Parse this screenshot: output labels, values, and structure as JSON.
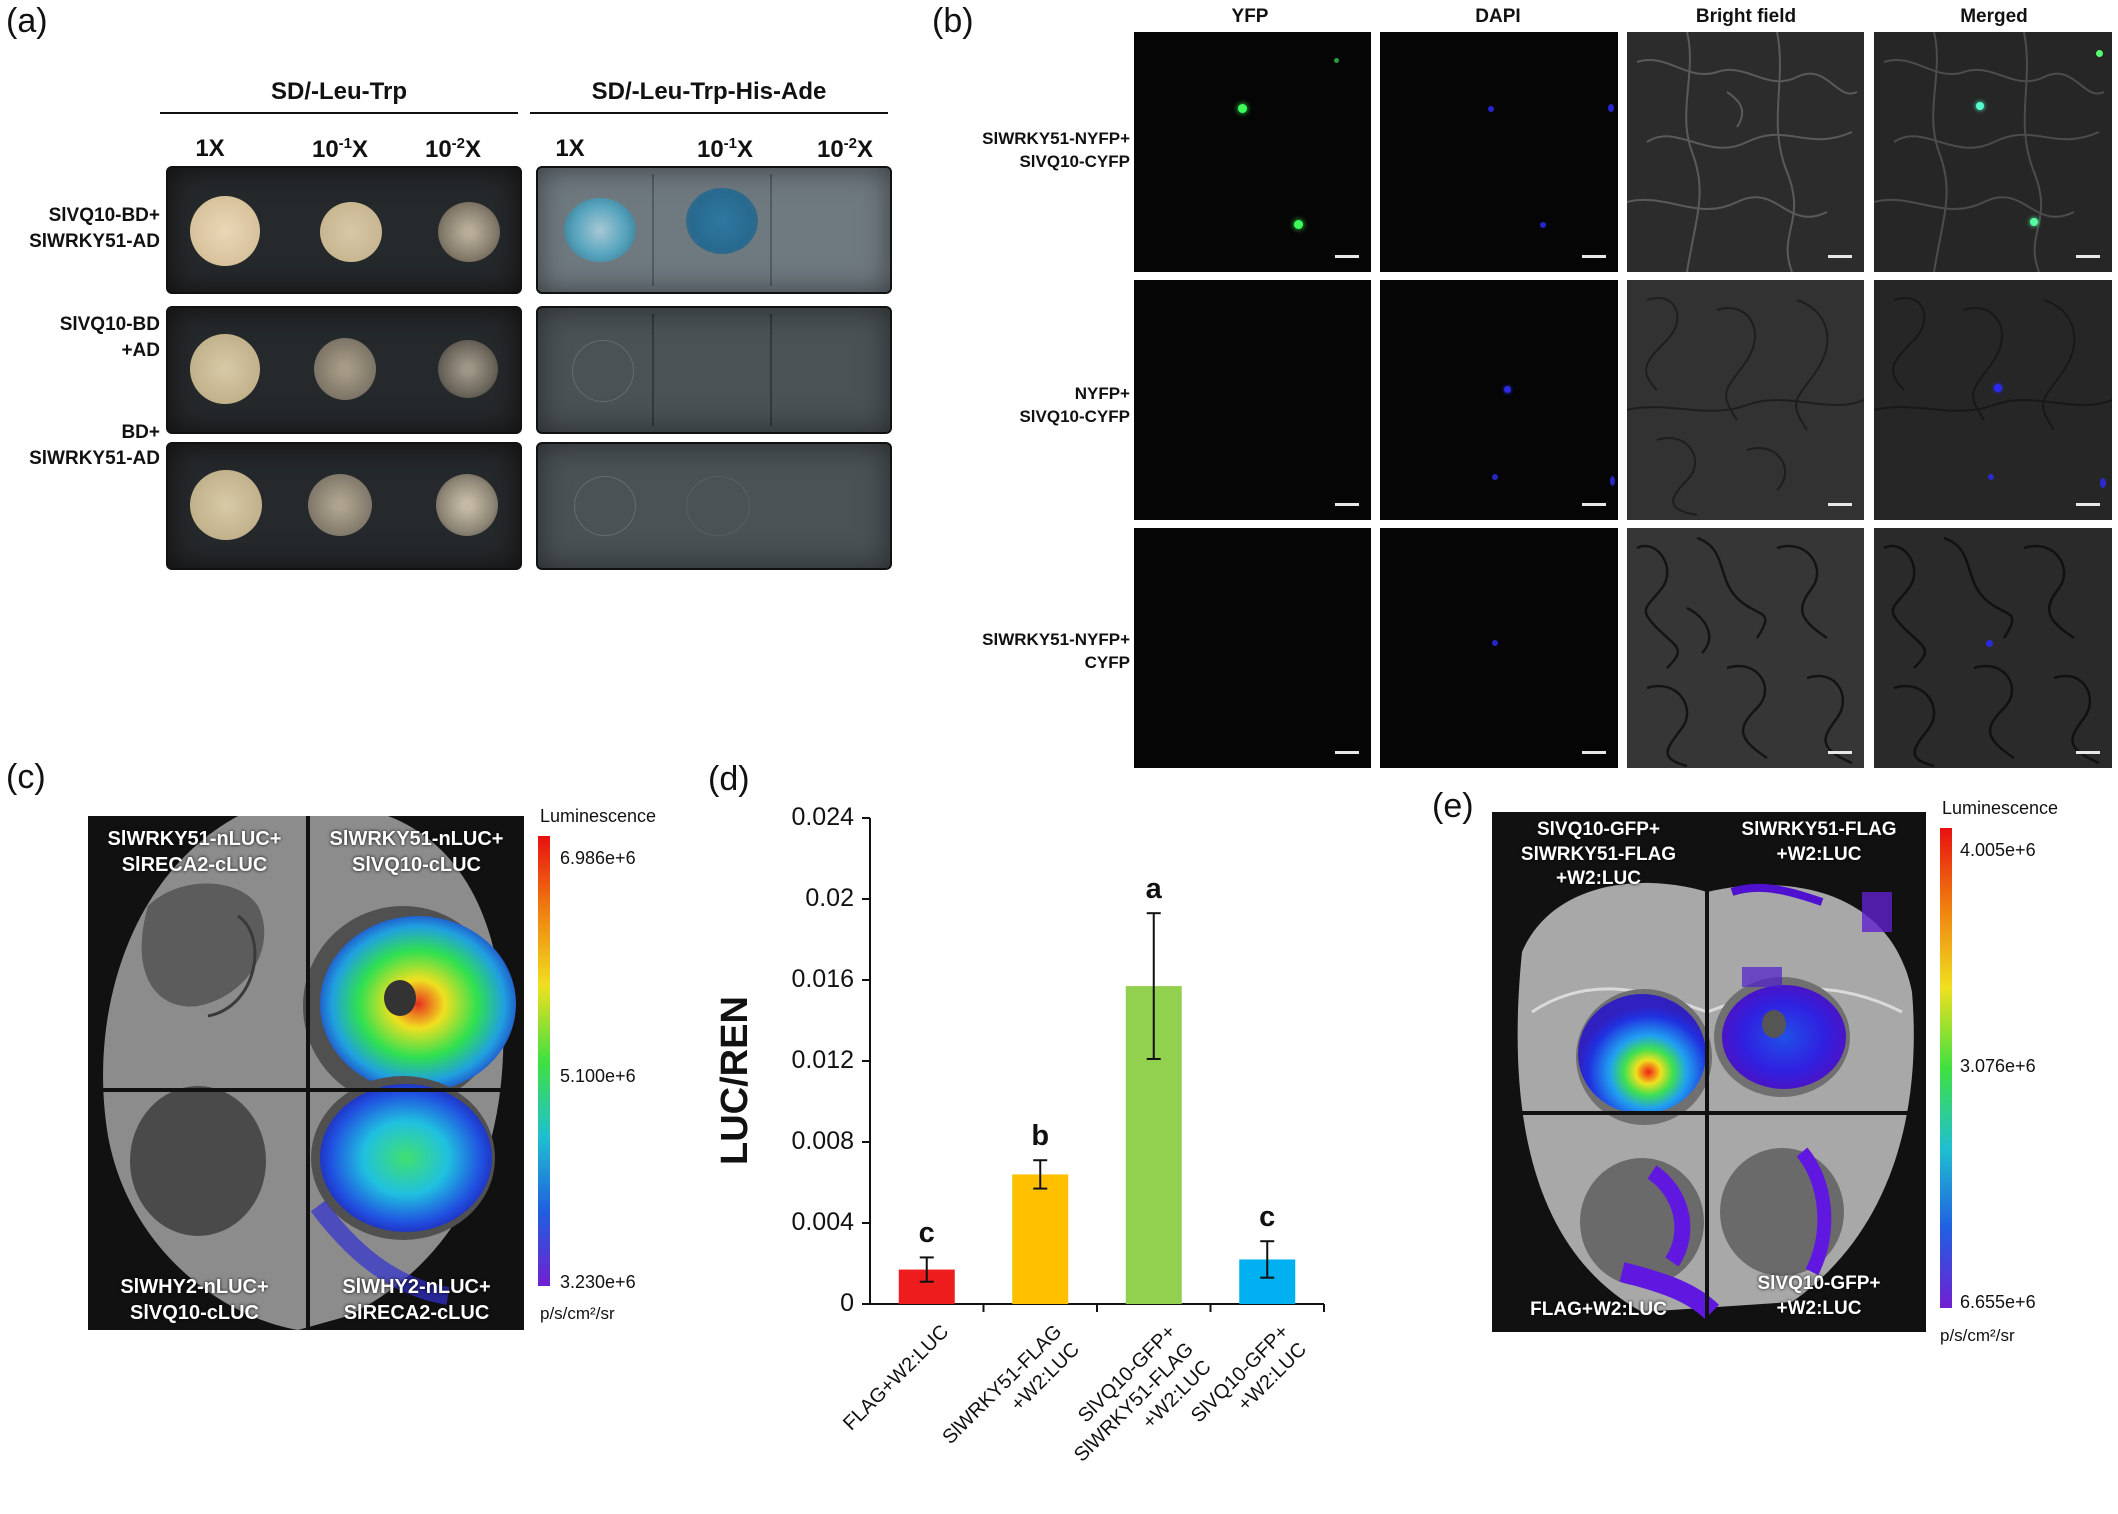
{
  "panel_a": {
    "letter": "(a)",
    "header_left": "SD/-Leu-Trp",
    "header_right": "SD/-Leu-Trp-His-Ade",
    "dilutions": [
      "1X",
      "10",
      "10"
    ],
    "dilution_exp": [
      "",
      "-1",
      "-2"
    ],
    "dilution_suffix": [
      "",
      "X",
      "X"
    ],
    "rows": [
      {
        "line1": "SlVQ10-BD+",
        "line2": "SlWRKY51-AD"
      },
      {
        "line1": "SlVQ10-BD",
        "line2": "+AD"
      },
      {
        "line1": "BD+",
        "line2": "SlWRKY51-AD"
      }
    ]
  },
  "panel_b": {
    "letter": "(b)",
    "columns": [
      "YFP",
      "DAPI",
      "Bright field",
      "Merged"
    ],
    "rows": [
      {
        "line1": "SlWRKY51-NYFP+",
        "line2": "SlVQ10-CYFP"
      },
      {
        "line1": "NYFP+",
        "line2": "SlVQ10-CYFP"
      },
      {
        "line1": "SlWRKY51-NYFP+",
        "line2": "CYFP"
      }
    ]
  },
  "panel_c": {
    "letter": "(c)",
    "quadrants": [
      {
        "line1": "SlWRKY51-nLUC+",
        "line2": "SlRECA2-cLUC"
      },
      {
        "line1": "SlWRKY51-nLUC+",
        "line2": "SlVQ10-cLUC"
      },
      {
        "line1": "SlWHY2-nLUC+",
        "line2": "SlVQ10-cLUC"
      },
      {
        "line1": "SlWHY2-nLUC+",
        "line2": "SlRECA2-cLUC"
      }
    ],
    "scale_title": "Luminescence",
    "scale_max": "6.986e+6",
    "scale_mid": "5.100e+6",
    "scale_min": "3.230e+6",
    "scale_unit": "p/s/cm²/sr"
  },
  "panel_d": {
    "letter": "(d)"
  },
  "chart_data": {
    "type": "bar",
    "ylabel": "LUC/REN",
    "ylim": [
      0,
      0.024
    ],
    "yticks": [
      "0",
      "0.004",
      "0.008",
      "0.012",
      "0.016",
      "0.02",
      "0.024"
    ],
    "categories": [
      {
        "line1": "FLAG+W2:LUC",
        "line2": ""
      },
      {
        "line1": "SlWRKY51-FLAG",
        "line2": "+W2:LUC"
      },
      {
        "line1": "SlVQ10-GFP+",
        "line2": "SlWRKY51-FLAG",
        "line3": "+W2:LUC"
      },
      {
        "line1": "SlVQ10-GFP+",
        "line2": "+W2:LUC"
      }
    ],
    "values": [
      0.0017,
      0.0064,
      0.0157,
      0.0022
    ],
    "errors": [
      0.0006,
      0.0007,
      0.0036,
      0.0009
    ],
    "significance": [
      "c",
      "b",
      "a",
      "c"
    ],
    "colors": [
      "#ee1c1c",
      "#ffc000",
      "#92d050",
      "#00b0f0"
    ]
  },
  "panel_e": {
    "letter": "(e)",
    "quadrants": [
      {
        "line1": "SlVQ10-GFP+",
        "line2": "SlWRKY51-FLAG",
        "line3": "+W2:LUC"
      },
      {
        "line1": "SlWRKY51-FLAG",
        "line2": "+W2:LUC"
      },
      {
        "line1": "FLAG+W2:LUC"
      },
      {
        "line1": "SlVQ10-GFP+",
        "line2": "+W2:LUC"
      }
    ],
    "scale_title": "Luminescence",
    "scale_max": "4.005e+6",
    "scale_mid": "3.076e+6",
    "scale_min": "6.655e+6",
    "scale_unit": "p/s/cm²/sr"
  }
}
